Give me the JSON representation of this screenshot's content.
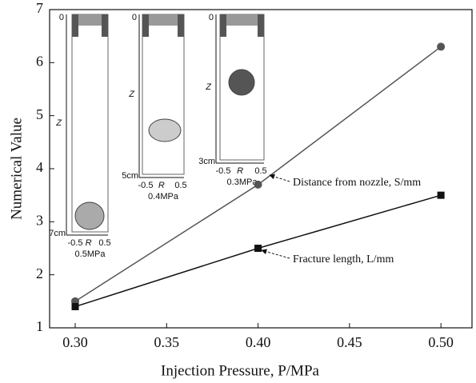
{
  "chart_data": {
    "type": "line",
    "x_label": "Injection Pressure, P/MPa",
    "y_label": "Numerical Value",
    "x": [
      0.3,
      0.4,
      0.5
    ],
    "series": [
      {
        "name": "Distance from nozzle, S/mm",
        "color": "#555555",
        "marker": "circle",
        "values": [
          1.5,
          3.7,
          6.3
        ]
      },
      {
        "name": "Fracture length, L/mm",
        "color": "#111111",
        "marker": "square",
        "values": [
          1.4,
          2.5,
          3.5
        ]
      }
    ],
    "xlim": [
      0.286,
      0.517
    ],
    "ylim": [
      1,
      7
    ],
    "xticks": [
      {
        "value": 0.3,
        "label": "0.30"
      },
      {
        "value": 0.35,
        "label": "0.35"
      },
      {
        "value": 0.4,
        "label": "0.40"
      },
      {
        "value": 0.45,
        "label": "0.45"
      },
      {
        "value": 0.5,
        "label": "0.50"
      }
    ],
    "yticks": [
      1,
      2,
      3,
      4,
      5,
      6,
      7
    ],
    "grid": false,
    "insets": [
      {
        "top": "0",
        "z": "Z",
        "depth": "7cm",
        "r_ticks": [
          "-0.5",
          "R",
          "0.5"
        ],
        "pressure": "0.5MPa"
      },
      {
        "top": "0",
        "z": "Z",
        "depth": "5cm",
        "r_ticks": [
          "-0.5",
          "R",
          "0.5"
        ],
        "pressure": "0.4MPa"
      },
      {
        "top": "0",
        "z": "Z",
        "depth": "3cm",
        "r_ticks": [
          "-0.5",
          "R",
          "0.5"
        ],
        "pressure": "0.3MPa"
      }
    ]
  }
}
